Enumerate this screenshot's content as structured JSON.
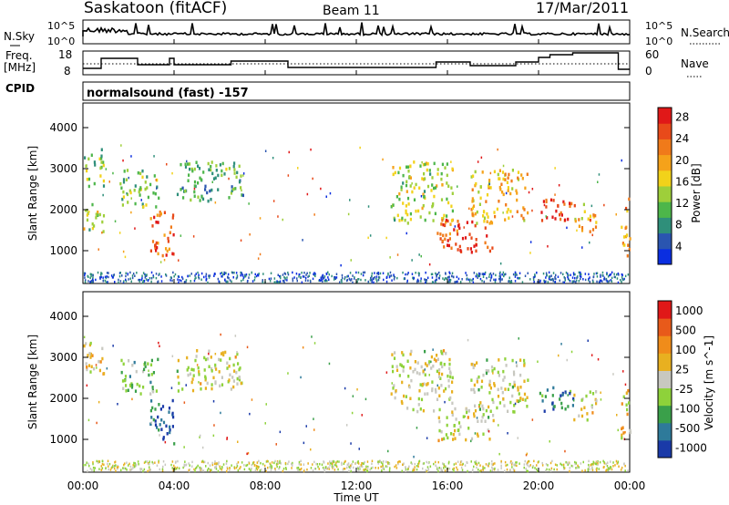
{
  "header": {
    "station": "Saskatoon (fitACF)",
    "beam": "Beam 11",
    "date": "17/Mar/2011"
  },
  "noise_panel": {
    "left_label": "N.Sky",
    "right_label": "N.Search",
    "left_ticks": [
      "10^5",
      "10^0"
    ],
    "right_ticks": [
      "10^5",
      "10^0"
    ]
  },
  "freq_panel": {
    "left_label_1": "Freq.",
    "left_label_2": "[MHz]",
    "right_label": "Nave",
    "left_ticks": [
      "18",
      "8"
    ],
    "right_ticks": [
      "60",
      "0"
    ]
  },
  "cpid": {
    "label": "CPID",
    "value": "normalsound (fast) -157"
  },
  "time_axis": {
    "ticks": [
      "00:00",
      "04:00",
      "08:00",
      "12:00",
      "16:00",
      "20:00",
      "00:00"
    ],
    "label": "Time UT"
  },
  "chart_data": [
    {
      "type": "heatmap",
      "title": "Power",
      "ylabel": "Slant Range [km]",
      "xlabel": "Time UT",
      "yticks": [
        "1000",
        "2000",
        "3000",
        "4000"
      ],
      "ylim": [
        200,
        4600
      ],
      "xlim": [
        0,
        24
      ],
      "colorbar_label": "Power [dB]",
      "colorbar_ticks": [
        "4",
        "8",
        "12",
        "16",
        "20",
        "24",
        "28"
      ],
      "colorbar_colors": [
        "#0a2ee0",
        "#2a55b0",
        "#2f8f7a",
        "#4db64a",
        "#9ecf3a",
        "#f2d21a",
        "#f5a21a",
        "#f07a1a",
        "#e84a1a",
        "#e01818"
      ],
      "regions": [
        {
          "t0": 0.0,
          "t1": 0.9,
          "r0": 2600,
          "r1": 3500,
          "level": 0.35
        },
        {
          "t0": 0.0,
          "t1": 0.9,
          "r0": 1500,
          "r1": 2200,
          "level": 0.45
        },
        {
          "t0": 1.6,
          "t1": 3.3,
          "r0": 2100,
          "r1": 3000,
          "level": 0.4
        },
        {
          "t0": 2.9,
          "t1": 4.0,
          "r0": 900,
          "r1": 2000,
          "level": 0.8
        },
        {
          "t0": 4.1,
          "t1": 7.0,
          "r0": 2200,
          "r1": 3200,
          "level": 0.35
        },
        {
          "t0": 13.5,
          "t1": 16.2,
          "r0": 1700,
          "r1": 3200,
          "level": 0.45
        },
        {
          "t0": 15.5,
          "t1": 18.0,
          "r0": 1000,
          "r1": 1800,
          "level": 0.85
        },
        {
          "t0": 17.0,
          "t1": 19.5,
          "r0": 1700,
          "r1": 3000,
          "level": 0.6
        },
        {
          "t0": 20.0,
          "t1": 21.5,
          "r0": 1700,
          "r1": 2300,
          "level": 0.9
        },
        {
          "t0": 21.5,
          "t1": 22.5,
          "r0": 1500,
          "r1": 2200,
          "level": 0.65
        },
        {
          "t0": 23.6,
          "t1": 24.0,
          "r0": 900,
          "r1": 2300,
          "level": 0.7
        }
      ]
    },
    {
      "type": "heatmap",
      "title": "Velocity",
      "ylabel": "Slant Range [km]",
      "xlabel": "Time UT",
      "yticks": [
        "1000",
        "2000",
        "3000",
        "4000"
      ],
      "ylim": [
        200,
        4600
      ],
      "xlim": [
        0,
        24
      ],
      "colorbar_label": "Velocity [m s^-1]",
      "colorbar_ticks": [
        "1000",
        "500",
        "100",
        "25",
        "-25",
        "-100",
        "-500",
        "-1000"
      ],
      "colorbar_colors": [
        "#1a3aa8",
        "#2e7a9a",
        "#3aa04a",
        "#8ed23a",
        "#c8c8c0",
        "#e8b020",
        "#f08c1a",
        "#e85a1a",
        "#e01818"
      ],
      "regions": [
        {
          "t0": 0.0,
          "t1": 0.9,
          "r0": 2600,
          "r1": 3500,
          "level": 0.6
        },
        {
          "t0": 1.6,
          "t1": 3.3,
          "r0": 2100,
          "r1": 3000,
          "level": 0.35
        },
        {
          "t0": 2.9,
          "t1": 4.0,
          "r0": 900,
          "r1": 2000,
          "level": 0.15
        },
        {
          "t0": 4.1,
          "t1": 7.0,
          "r0": 2200,
          "r1": 3200,
          "level": 0.5
        },
        {
          "t0": 13.5,
          "t1": 16.2,
          "r0": 1700,
          "r1": 3200,
          "level": 0.5
        },
        {
          "t0": 15.5,
          "t1": 18.0,
          "r0": 1000,
          "r1": 1800,
          "level": 0.5
        },
        {
          "t0": 17.0,
          "t1": 19.5,
          "r0": 1700,
          "r1": 3000,
          "level": 0.48
        },
        {
          "t0": 20.0,
          "t1": 21.5,
          "r0": 1700,
          "r1": 2300,
          "level": 0.2
        },
        {
          "t0": 21.5,
          "t1": 22.5,
          "r0": 1500,
          "r1": 2200,
          "level": 0.5
        },
        {
          "t0": 23.6,
          "t1": 24.0,
          "r0": 900,
          "r1": 2300,
          "level": 0.6
        }
      ]
    }
  ]
}
